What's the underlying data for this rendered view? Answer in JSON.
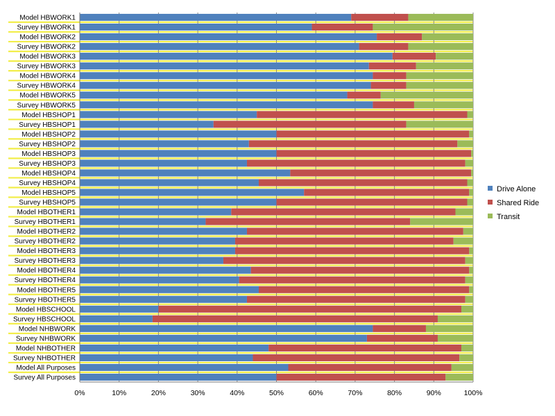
{
  "chart_data": {
    "type": "bar",
    "orientation": "horizontal",
    "stacked": true,
    "normalized": true,
    "title": "",
    "xlabel": "",
    "ylabel": "",
    "xlim": [
      0,
      100
    ],
    "x_ticks": [
      "0%",
      "10%",
      "20%",
      "30%",
      "40%",
      "50%",
      "60%",
      "70%",
      "80%",
      "90%",
      "100%"
    ],
    "grid": true,
    "legend_position": "right",
    "categories": [
      "Model HBWORK1",
      "Survey HBWORK1",
      "Model HBWORK2",
      "Survey HBWORK2",
      "Model HBWORK3",
      "Survey HBWORK3",
      "Model HBWORK4",
      "Survey HBWORK4",
      "Model HBWORK5",
      "Survey HBWORK5",
      "Model HBSHOP1",
      "Survey HBSHOP1",
      "Model HBSHOP2",
      "Survey HBSHOP2",
      "Model HBSHOP3",
      "Survey HBSHOP3",
      "Model HBSHOP4",
      "Survey HBSHOP4",
      "Model HBSHOP5",
      "Survey HBSHOP5",
      "Model HBOTHER1",
      "Survey HBOTHER1",
      "Model HBOTHER2",
      "Survey HBOTHER2",
      "Model HBOTHER3",
      "Survey HBOTHER3",
      "Model HBOTHER4",
      "Survey HBOTHER4",
      "Model HBOTHER5",
      "Survey HBOTHER5",
      "Model HBSCHOOL",
      "Survey HBSCHOOL",
      "Model NHBWORK",
      "Survey NHBWORK",
      "Model NHBOTHER",
      "Survey NHBOTHER",
      "Model All Purposes",
      "Survey All Purposes"
    ],
    "series": [
      {
        "name": "Drive Alone",
        "color": "#4F81BD",
        "values": [
          69,
          59,
          75.5,
          71,
          79.5,
          73.5,
          74.5,
          74,
          68,
          74.5,
          45,
          34,
          50,
          43,
          50,
          42.5,
          53.5,
          45.5,
          57,
          50,
          38.5,
          32,
          42.5,
          39.5,
          39.5,
          36.5,
          43.5,
          40.5,
          45.5,
          42.5,
          20,
          18.5,
          74.5,
          73,
          48,
          44,
          53,
          50
        ]
      },
      {
        "name": "Shared Ride",
        "color": "#C0504D",
        "values": [
          14.5,
          15.5,
          11.5,
          12.5,
          11,
          12,
          8.5,
          9,
          8.5,
          10.5,
          53.5,
          49,
          49,
          53,
          49.5,
          55.5,
          46,
          53,
          42,
          48.5,
          57,
          52,
          55,
          55.5,
          59.5,
          61.5,
          55.5,
          57.5,
          53.5,
          55.5,
          77,
          72.5,
          13.5,
          18,
          49,
          52.5,
          41.5,
          43
        ]
      },
      {
        "name": "Transit",
        "color": "#9BBB59",
        "values": [
          16.5,
          25.5,
          13,
          16.5,
          9.5,
          14.5,
          17,
          17,
          23.5,
          15,
          1.5,
          17,
          1,
          4,
          0.5,
          2,
          0.5,
          1.5,
          1,
          1.5,
          4.5,
          16,
          2.5,
          5,
          1,
          2,
          1,
          2,
          1,
          2,
          3,
          9,
          12,
          9,
          3,
          3.5,
          5.5,
          7
        ]
      }
    ]
  }
}
